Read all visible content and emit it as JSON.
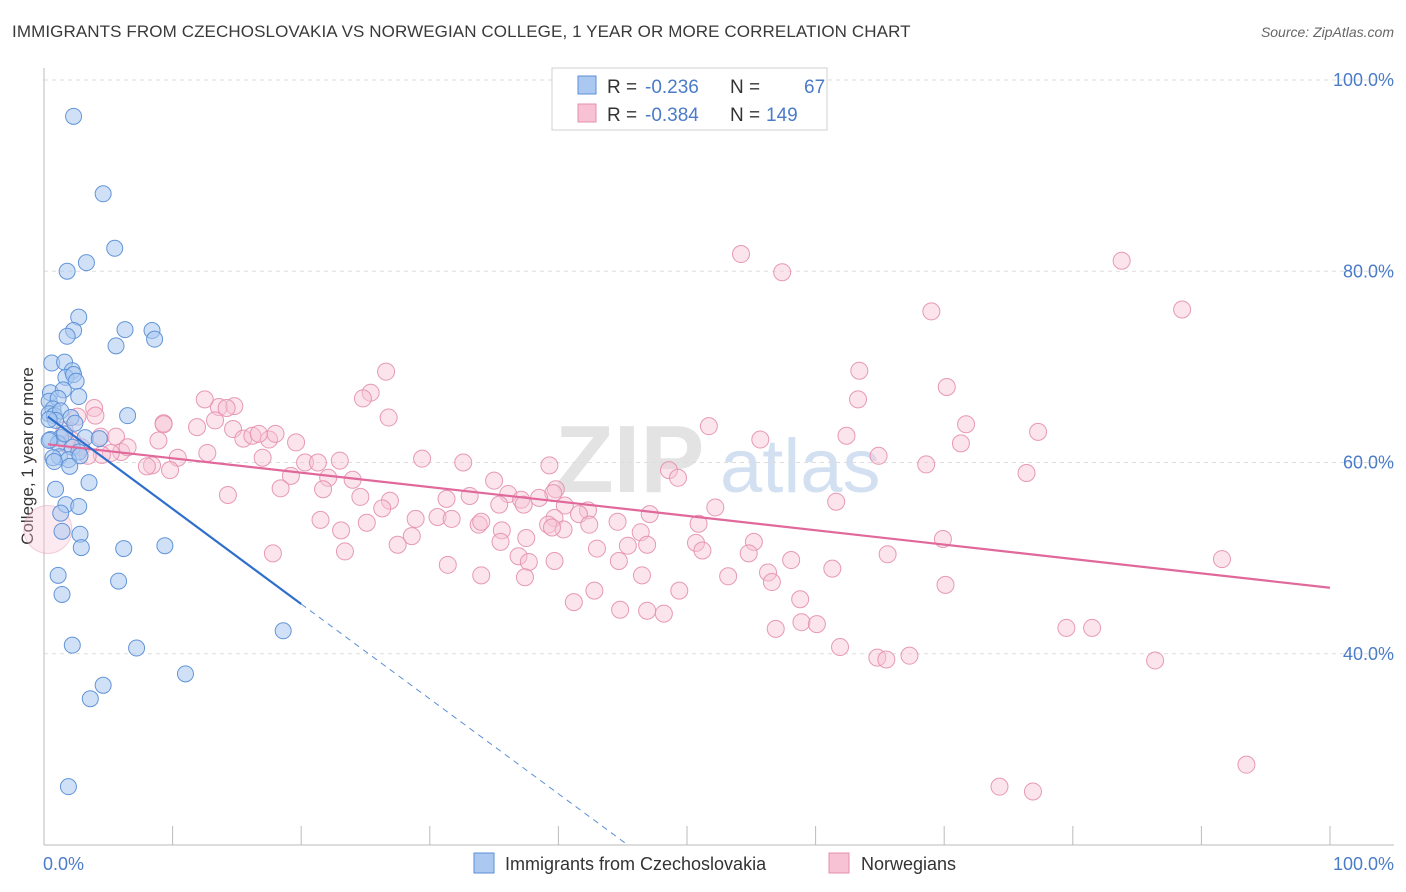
{
  "header": {
    "title": "IMMIGRANTS FROM CZECHOSLOVAKIA VS NORWEGIAN COLLEGE, 1 YEAR OR MORE CORRELATION CHART",
    "source": "Source: ZipAtlas.com"
  },
  "watermark": {
    "zip": "ZIP",
    "atlas": "atlas"
  },
  "colors": {
    "blue_fill": "#aac8f0",
    "blue_stroke": "#5b8fd6",
    "blue_line": "#2f6fcc",
    "pink_fill": "#f7c3d4",
    "pink_stroke": "#e48fae",
    "pink_line": "#e0689a",
    "accent_text": "#4a7cc8",
    "grid": "#dddddd"
  },
  "legend": {
    "rows": [
      {
        "r_label": "R = ",
        "r_value": "-0.236",
        "n_label": "N = ",
        "n_value": "67"
      },
      {
        "r_label": "R = ",
        "r_value": "-0.384",
        "n_label": "N = ",
        "n_value": "149"
      }
    ]
  },
  "chart_data": {
    "type": "scatter",
    "xlabel": "",
    "ylabel": "College, 1 year or more",
    "xlim": [
      0,
      100
    ],
    "ylim": [
      20,
      100
    ],
    "x_tick_labels": [
      "0.0%",
      "100.0%"
    ],
    "y_ticks": [
      40,
      60,
      80,
      100
    ],
    "y_tick_labels": [
      "40.0%",
      "60.0%",
      "80.0%",
      "100.0%"
    ],
    "grid": true,
    "series": [
      {
        "name": "Immigrants from Czechoslovakia",
        "color": "blue",
        "r": -0.236,
        "n": 67,
        "trend": {
          "x0": 0.3,
          "y0": 64.8,
          "x1": 20,
          "y1": 45.2,
          "dash_to_x": 45.4,
          "dash_to_y": 20
        },
        "points": [
          [
            2.3,
            96.2
          ],
          [
            4.6,
            88.1
          ],
          [
            5.5,
            82.4
          ],
          [
            3.3,
            80.9
          ],
          [
            1.8,
            80.0
          ],
          [
            2.7,
            75.2
          ],
          [
            2.3,
            73.8
          ],
          [
            1.8,
            73.2
          ],
          [
            6.3,
            73.9
          ],
          [
            8.4,
            73.8
          ],
          [
            8.6,
            72.9
          ],
          [
            5.6,
            72.2
          ],
          [
            0.6,
            70.4
          ],
          [
            1.6,
            70.5
          ],
          [
            2.2,
            69.6
          ],
          [
            1.7,
            68.9
          ],
          [
            2.3,
            69.2
          ],
          [
            0.5,
            67.3
          ],
          [
            2.5,
            68.5
          ],
          [
            1.5,
            67.6
          ],
          [
            2.7,
            66.9
          ],
          [
            0.4,
            66.4
          ],
          [
            1.1,
            66.7
          ],
          [
            0.7,
            65.6
          ],
          [
            0.4,
            65.1
          ],
          [
            0.8,
            64.9
          ],
          [
            1.3,
            65.4
          ],
          [
            2.1,
            64.7
          ],
          [
            6.5,
            64.9
          ],
          [
            0.9,
            64.4
          ],
          [
            0.4,
            64.5
          ],
          [
            1.3,
            62.6
          ],
          [
            3.2,
            62.6
          ],
          [
            0.5,
            62.4
          ],
          [
            1.1,
            62.0
          ],
          [
            4.3,
            62.5
          ],
          [
            2.2,
            61.6
          ],
          [
            2.7,
            61.1
          ],
          [
            1.2,
            60.6
          ],
          [
            1.9,
            60.3
          ],
          [
            2.8,
            60.7
          ],
          [
            0.7,
            60.5
          ],
          [
            2.0,
            59.6
          ],
          [
            3.5,
            57.9
          ],
          [
            1.7,
            55.6
          ],
          [
            2.7,
            55.4
          ],
          [
            1.3,
            54.7
          ],
          [
            1.4,
            52.8
          ],
          [
            2.8,
            52.5
          ],
          [
            2.9,
            51.1
          ],
          [
            6.2,
            51.0
          ],
          [
            9.4,
            51.3
          ],
          [
            1.1,
            48.2
          ],
          [
            5.8,
            47.6
          ],
          [
            1.4,
            46.2
          ],
          [
            18.6,
            42.4
          ],
          [
            2.2,
            40.9
          ],
          [
            7.2,
            40.6
          ],
          [
            11.0,
            37.9
          ],
          [
            4.6,
            36.7
          ],
          [
            3.6,
            35.3
          ],
          [
            1.9,
            26.1
          ],
          [
            0.4,
            62.3
          ],
          [
            0.8,
            60.1
          ],
          [
            1.6,
            63.0
          ],
          [
            2.4,
            64.1
          ],
          [
            0.9,
            57.2
          ]
        ]
      },
      {
        "name": "Norwegians",
        "color": "pink",
        "r": -0.384,
        "n": 149,
        "trend": {
          "x0": 0.3,
          "y0": 61.9,
          "x1": 100,
          "y1": 46.9
        },
        "points": [
          [
            54.2,
            81.8
          ],
          [
            57.4,
            79.9
          ],
          [
            83.8,
            81.1
          ],
          [
            69.0,
            75.8
          ],
          [
            88.5,
            76.0
          ],
          [
            26.6,
            69.5
          ],
          [
            63.4,
            69.6
          ],
          [
            70.2,
            67.9
          ],
          [
            25.4,
            67.3
          ],
          [
            24.8,
            66.7
          ],
          [
            63.3,
            66.6
          ],
          [
            13.6,
            65.8
          ],
          [
            12.5,
            66.6
          ],
          [
            14.8,
            65.9
          ],
          [
            14.2,
            65.7
          ],
          [
            3.9,
            65.7
          ],
          [
            2.6,
            64.8
          ],
          [
            4.0,
            64.9
          ],
          [
            13.3,
            64.4
          ],
          [
            9.3,
            64.1
          ],
          [
            11.9,
            63.7
          ],
          [
            14.7,
            63.5
          ],
          [
            1.6,
            63.4
          ],
          [
            26.8,
            64.7
          ],
          [
            51.7,
            63.8
          ],
          [
            71.7,
            64.0
          ],
          [
            77.3,
            63.2
          ],
          [
            62.4,
            62.8
          ],
          [
            55.7,
            62.4
          ],
          [
            15.5,
            62.5
          ],
          [
            16.2,
            62.8
          ],
          [
            17.5,
            62.4
          ],
          [
            18.0,
            63.0
          ],
          [
            16.7,
            63.0
          ],
          [
            4.4,
            62.7
          ],
          [
            5.6,
            62.7
          ],
          [
            8.9,
            62.3
          ],
          [
            2.2,
            62.3
          ],
          [
            1.8,
            61.9
          ],
          [
            19.6,
            62.1
          ],
          [
            71.3,
            62.0
          ],
          [
            2.9,
            61.6
          ],
          [
            6.0,
            61.1
          ],
          [
            5.2,
            61.0
          ],
          [
            4.5,
            60.8
          ],
          [
            3.4,
            60.7
          ],
          [
            10.4,
            60.5
          ],
          [
            17.0,
            60.5
          ],
          [
            29.4,
            60.4
          ],
          [
            20.3,
            60.0
          ],
          [
            21.3,
            60.0
          ],
          [
            23.0,
            60.2
          ],
          [
            32.6,
            60.0
          ],
          [
            64.9,
            60.7
          ],
          [
            68.6,
            59.8
          ],
          [
            39.3,
            59.7
          ],
          [
            8.4,
            59.7
          ],
          [
            8.0,
            59.6
          ],
          [
            9.8,
            59.2
          ],
          [
            48.6,
            59.2
          ],
          [
            76.4,
            58.9
          ],
          [
            19.2,
            58.6
          ],
          [
            22.1,
            58.4
          ],
          [
            24.0,
            58.2
          ],
          [
            35.0,
            58.1
          ],
          [
            49.3,
            58.4
          ],
          [
            39.8,
            57.2
          ],
          [
            21.7,
            57.2
          ],
          [
            18.4,
            57.3
          ],
          [
            39.6,
            56.8
          ],
          [
            24.6,
            56.4
          ],
          [
            33.1,
            56.5
          ],
          [
            36.1,
            56.7
          ],
          [
            37.1,
            56.1
          ],
          [
            31.3,
            56.2
          ],
          [
            14.3,
            56.6
          ],
          [
            26.9,
            56.0
          ],
          [
            61.6,
            55.9
          ],
          [
            38.5,
            56.3
          ],
          [
            37.3,
            55.6
          ],
          [
            40.5,
            55.5
          ],
          [
            26.3,
            55.2
          ],
          [
            35.4,
            55.6
          ],
          [
            42.3,
            55.0
          ],
          [
            52.2,
            55.3
          ],
          [
            41.6,
            54.6
          ],
          [
            47.1,
            54.6
          ],
          [
            33.8,
            53.5
          ],
          [
            30.6,
            54.3
          ],
          [
            39.7,
            54.2
          ],
          [
            28.9,
            54.1
          ],
          [
            21.5,
            54.0
          ],
          [
            25.1,
            53.7
          ],
          [
            39.2,
            53.5
          ],
          [
            35.6,
            52.9
          ],
          [
            28.6,
            52.3
          ],
          [
            23.1,
            52.9
          ],
          [
            44.6,
            53.8
          ],
          [
            50.9,
            53.6
          ],
          [
            34.0,
            53.8
          ],
          [
            31.7,
            54.1
          ],
          [
            40.4,
            53.0
          ],
          [
            42.4,
            53.5
          ],
          [
            39.5,
            53.2
          ],
          [
            46.4,
            52.7
          ],
          [
            37.5,
            52.1
          ],
          [
            50.7,
            51.6
          ],
          [
            55.2,
            51.7
          ],
          [
            46.9,
            51.4
          ],
          [
            35.5,
            51.7
          ],
          [
            43.0,
            51.0
          ],
          [
            27.5,
            51.4
          ],
          [
            69.9,
            52.0
          ],
          [
            45.4,
            51.3
          ],
          [
            51.2,
            50.8
          ],
          [
            23.4,
            50.7
          ],
          [
            17.8,
            50.5
          ],
          [
            36.9,
            50.2
          ],
          [
            31.4,
            49.3
          ],
          [
            39.7,
            49.7
          ],
          [
            37.7,
            49.6
          ],
          [
            44.7,
            49.7
          ],
          [
            54.8,
            50.5
          ],
          [
            58.1,
            49.8
          ],
          [
            61.3,
            48.9
          ],
          [
            65.6,
            50.4
          ],
          [
            56.3,
            48.5
          ],
          [
            91.6,
            49.9
          ],
          [
            34.0,
            48.2
          ],
          [
            46.5,
            48.2
          ],
          [
            53.2,
            48.1
          ],
          [
            37.4,
            48.0
          ],
          [
            56.6,
            47.5
          ],
          [
            70.1,
            47.2
          ],
          [
            42.8,
            46.6
          ],
          [
            49.4,
            46.6
          ],
          [
            58.8,
            45.7
          ],
          [
            41.2,
            45.4
          ],
          [
            44.8,
            44.6
          ],
          [
            46.9,
            44.5
          ],
          [
            48.2,
            44.2
          ],
          [
            56.9,
            42.6
          ],
          [
            58.9,
            43.3
          ],
          [
            60.1,
            43.1
          ],
          [
            61.9,
            40.7
          ],
          [
            64.8,
            39.6
          ],
          [
            65.5,
            39.4
          ],
          [
            67.3,
            39.8
          ],
          [
            79.5,
            42.7
          ],
          [
            81.5,
            42.7
          ],
          [
            86.4,
            39.3
          ],
          [
            93.5,
            28.4
          ],
          [
            74.3,
            26.1
          ],
          [
            76.9,
            25.6
          ],
          [
            9.3,
            64.0
          ],
          [
            6.5,
            61.6
          ],
          [
            12.7,
            61.0
          ]
        ]
      }
    ]
  }
}
